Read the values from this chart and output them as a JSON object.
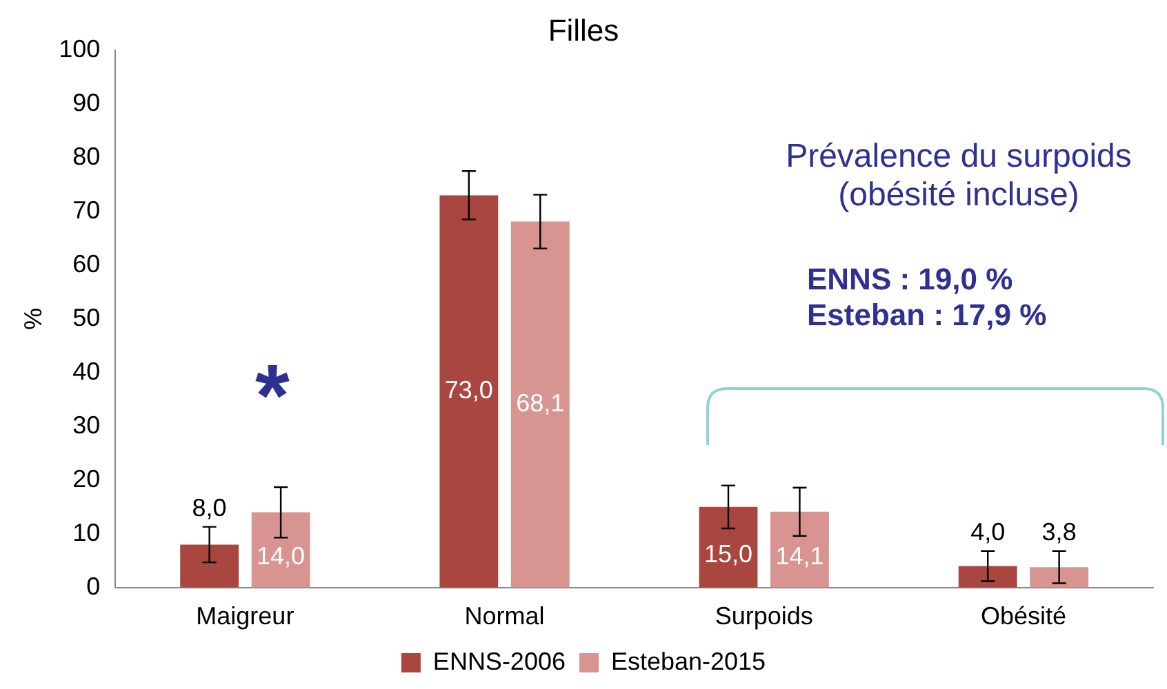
{
  "chart_data": {
    "type": "bar",
    "title": "Filles",
    "ylabel": "%",
    "categories": [
      "Maigreur",
      "Normal",
      "Surpoids",
      "Obésité"
    ],
    "series": [
      {
        "name": "ENNS-2006",
        "color": "#a8463f",
        "values": [
          8,
          73,
          15,
          4
        ],
        "errors": [
          3.3,
          4.5,
          4,
          2.8
        ],
        "value_labels": [
          "8,0",
          "73,0",
          "15,0",
          "4,0"
        ]
      },
      {
        "name": "Esteban-2015",
        "color": "#d79490",
        "values": [
          14,
          68.1,
          14.1,
          3.8
        ],
        "errors": [
          4.7,
          5,
          4.5,
          3
        ],
        "value_labels": [
          "14,0",
          "68,1",
          "14,1",
          "3,8"
        ]
      }
    ],
    "ylim": [
      0,
      100
    ],
    "yticks": [
      0,
      10,
      20,
      30,
      40,
      50,
      60,
      70,
      80,
      90,
      100
    ],
    "grid": false,
    "legend": "bottom",
    "annotations": [
      "*",
      "Prévalence du surpoids\n(obésité incluse)",
      "ENNS : 19,0 %\nEsteban : 17,9 %"
    ]
  }
}
